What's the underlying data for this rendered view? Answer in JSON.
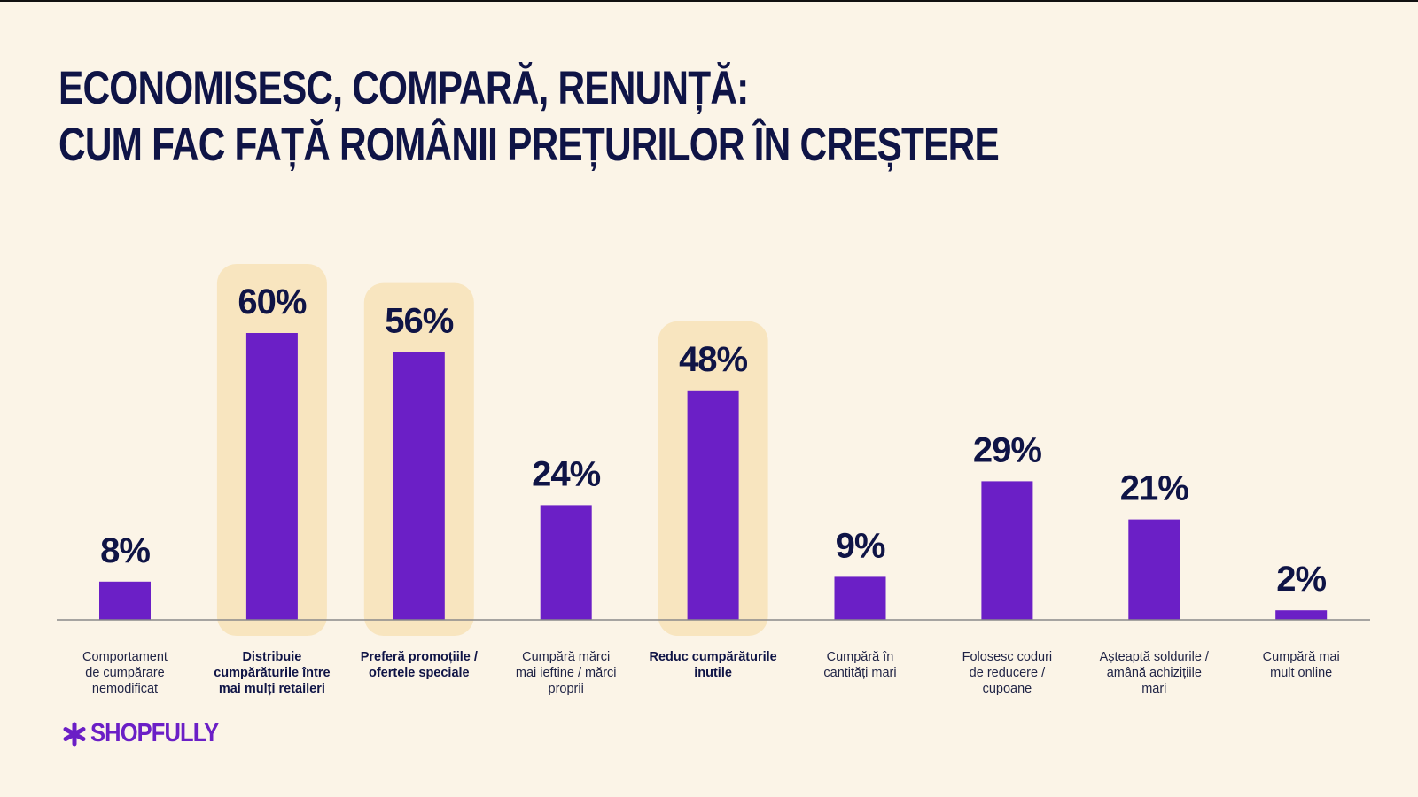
{
  "title": {
    "line1": "ECONOMISESC, COMPARĂ, RENUNȚĂ:",
    "line2": "CUM FAC FAȚĂ ROMÂNII PREȚURILOR ÎN CREȘTERE"
  },
  "colors": {
    "background": "#FBF4E7",
    "bar": "#6B1FC6",
    "highlight": "#F8E5BF",
    "text": "#0F1446",
    "axis": "#8A8A8A"
  },
  "chart_data": {
    "type": "bar",
    "title": "ECONOMISESC, COMPARĂ, RENUNȚĂ: CUM FAC FAȚĂ ROMÂNII PREȚURILOR ÎN CREȘTERE",
    "xlabel": "",
    "ylabel": "",
    "unit": "%",
    "ylim": [
      0,
      60
    ],
    "grid": false,
    "categories": [
      "Comportament de cumpărare nemodificat",
      "Distribuie cumpărăturile între mai mulți retaileri",
      "Preferă promoțiile / ofertele speciale",
      "Cumpără mărci mai ieftine / mărci proprii",
      "Reduc cumpărăturile inutile",
      "Cumpără în cantități mari",
      "Folosesc coduri de reducere / cupoane",
      "Așteaptă soldurile / amână achizițiile mari",
      "Cumpără mai mult online"
    ],
    "values": [
      8,
      60,
      56,
      24,
      48,
      9,
      29,
      21,
      2
    ],
    "value_labels": [
      "8%",
      "60%",
      "56%",
      "24%",
      "48%",
      "9%",
      "29%",
      "21%",
      "2%"
    ],
    "highlighted": [
      false,
      true,
      true,
      false,
      true,
      false,
      false,
      false,
      false
    ]
  },
  "category_lines": [
    [
      "Comportament",
      "de cumpărare",
      "nemodificat"
    ],
    [
      "Distribuie",
      "cumpărăturile între",
      "mai mulți retaileri"
    ],
    [
      "Preferă promoțiile /",
      "ofertele speciale"
    ],
    [
      "Cumpără mărci",
      "mai ieftine / mărci",
      "proprii"
    ],
    [
      "Reduc cumpărăturile",
      "inutile"
    ],
    [
      "Cumpără în",
      "cantități mari"
    ],
    [
      "Folosesc coduri",
      "de reducere /",
      "cupoane"
    ],
    [
      "Așteaptă soldurile /",
      "amână achizițiile",
      "mari"
    ],
    [
      "Cumpără mai",
      "mult online"
    ]
  ],
  "logo": {
    "icon": "asterisk-icon",
    "text": "SHOPFULLY"
  }
}
